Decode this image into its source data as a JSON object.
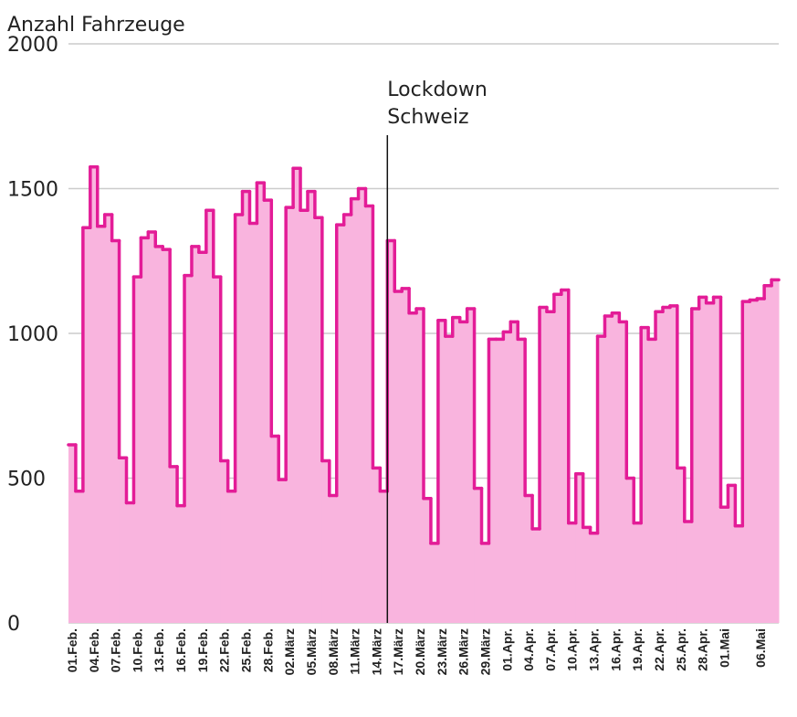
{
  "chart_data": {
    "type": "step",
    "y_label": "Anzahl Fahrzeuge",
    "annotation": [
      "Lockdown",
      "Schweiz"
    ],
    "categories": [
      "01.Feb.",
      null,
      null,
      "04.Feb.",
      null,
      null,
      "07.Feb.",
      null,
      null,
      "10.Feb.",
      null,
      null,
      "13.Feb.",
      null,
      null,
      "16.Feb.",
      null,
      null,
      "19.Feb.",
      null,
      null,
      "22.Feb.",
      null,
      null,
      "25.Feb.",
      null,
      null,
      "28.Feb.",
      null,
      null,
      "02.März",
      null,
      null,
      "05.März",
      null,
      null,
      "08.März",
      null,
      null,
      "11.März",
      null,
      null,
      "14.März",
      null,
      null,
      "17.März",
      null,
      null,
      "20.März",
      null,
      null,
      "23.März",
      null,
      null,
      "26.März",
      null,
      null,
      "29.März",
      null,
      null,
      "01.Apr.",
      null,
      null,
      "04.Apr.",
      null,
      null,
      "07.Apr.",
      null,
      null,
      "10.Apr.",
      null,
      null,
      "13.Apr.",
      null,
      null,
      "16.Apr.",
      null,
      null,
      "19.Apr.",
      null,
      null,
      "22.Apr.",
      null,
      null,
      "25.Apr.",
      null,
      null,
      "28.Apr.",
      null,
      null,
      "01.Mai",
      null,
      null,
      null,
      null,
      "06.Mai",
      null,
      null
    ],
    "values": [
      615,
      455,
      1365,
      1575,
      1370,
      1410,
      1320,
      570,
      415,
      1195,
      1330,
      1350,
      1300,
      1290,
      540,
      405,
      1200,
      1300,
      1280,
      1425,
      1195,
      560,
      455,
      1410,
      1490,
      1380,
      1520,
      1460,
      645,
      495,
      1435,
      1570,
      1425,
      1490,
      1400,
      560,
      440,
      1375,
      1410,
      1465,
      1500,
      1440,
      535,
      455,
      1320,
      1145,
      1155,
      1070,
      1085,
      430,
      275,
      1045,
      990,
      1055,
      1040,
      1085,
      465,
      275,
      980,
      980,
      1005,
      1040,
      980,
      440,
      325,
      1090,
      1075,
      1135,
      1150,
      345,
      515,
      330,
      310,
      990,
      1060,
      1070,
      1040,
      500,
      345,
      1020,
      980,
      1075,
      1090,
      1095,
      535,
      350,
      1085,
      1125,
      1105,
      1125,
      400,
      475,
      335,
      1110,
      1115,
      1120,
      1165,
      1185
    ],
    "color": "#e31c97",
    "fill": "#f9b4de",
    "ylim": [
      0,
      2000
    ],
    "yticks": [
      0,
      500,
      1000,
      1500,
      2000
    ],
    "grid": true
  }
}
